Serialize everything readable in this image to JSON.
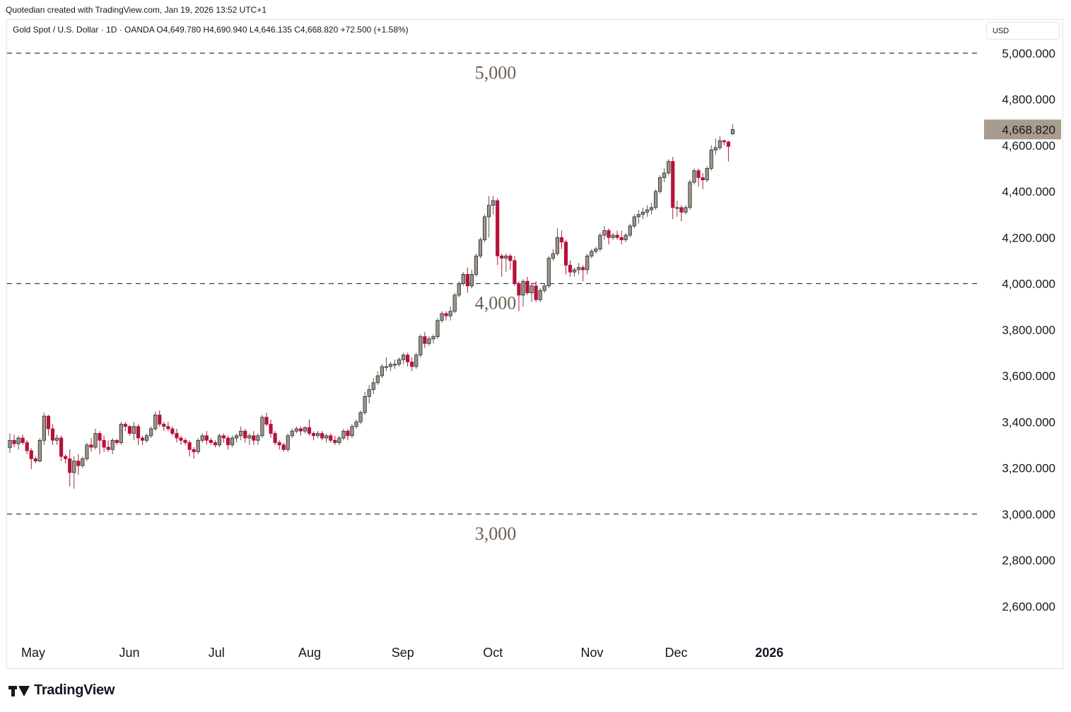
{
  "header": {
    "credit": "Quotedian created with TradingView.com, Jan 19, 2026 13:52 UTC+1"
  },
  "legend": {
    "text": "Gold Spot / U.S. Dollar · 1D · OANDA  O4,649.780  H4,690.940  L4,646.135  C4,668.820  +72.500 (+1.58%)"
  },
  "currency_button": "USD",
  "footer": {
    "brand": "TradingView",
    "logo_icon": "tradingview-logo-icon"
  },
  "colors": {
    "up": "#9e9488",
    "down": "#b5123a",
    "wick": "#555555",
    "level_line": "#3c3c3c",
    "level_label": "#6b6155",
    "last_price_bg": "#a89c8e"
  },
  "chart_data": {
    "type": "candlestick",
    "title": "",
    "xlabel": "",
    "ylabel": "",
    "ylim": [
      2455,
      5085
    ],
    "y_ticks": [
      "2,600.000",
      "2,800.000",
      "3,000.000",
      "3,200.000",
      "3,400.000",
      "3,600.000",
      "3,800.000",
      "4,000.000",
      "4,200.000",
      "4,400.000",
      "4,600.000",
      "4,800.000",
      "5,000.000"
    ],
    "y_tick_values": [
      2600,
      2800,
      3000,
      3200,
      3400,
      3600,
      3800,
      4000,
      4200,
      4400,
      4600,
      4800,
      5000
    ],
    "x_labels": [
      {
        "label": "May",
        "bold": false
      },
      {
        "label": "Jun",
        "bold": false
      },
      {
        "label": "Jul",
        "bold": false
      },
      {
        "label": "Aug",
        "bold": false
      },
      {
        "label": "Sep",
        "bold": false
      },
      {
        "label": "Oct",
        "bold": false
      },
      {
        "label": "Nov",
        "bold": false
      },
      {
        "label": "Dec",
        "bold": false
      },
      {
        "label": "2026",
        "bold": true
      }
    ],
    "x_label_dates": [
      "2025-05-01",
      "2025-06-02",
      "2025-07-01",
      "2025-08-01",
      "2025-09-01",
      "2025-10-01",
      "2025-11-03",
      "2025-12-01",
      "2026-01-01"
    ],
    "last_price": {
      "value": 4668.82,
      "label": "4,668.820"
    },
    "levels": [
      {
        "value": 5000,
        "label": "5,000"
      },
      {
        "value": 4000,
        "label": "4,000"
      },
      {
        "value": 3000,
        "label": "3,000"
      }
    ],
    "grid": false,
    "candles": [
      [
        3288,
        3350,
        3265,
        3320
      ],
      [
        3320,
        3345,
        3290,
        3305
      ],
      [
        3305,
        3340,
        3280,
        3330
      ],
      [
        3330,
        3345,
        3300,
        3310
      ],
      [
        3310,
        3320,
        3260,
        3275
      ],
      [
        3275,
        3285,
        3195,
        3240
      ],
      [
        3240,
        3250,
        3220,
        3230
      ],
      [
        3230,
        3330,
        3225,
        3320
      ],
      [
        3320,
        3440,
        3300,
        3425
      ],
      [
        3425,
        3430,
        3340,
        3370
      ],
      [
        3370,
        3390,
        3300,
        3320
      ],
      [
        3320,
        3345,
        3300,
        3330
      ],
      [
        3330,
        3340,
        3230,
        3250
      ],
      [
        3250,
        3260,
        3220,
        3240
      ],
      [
        3240,
        3280,
        3120,
        3180
      ],
      [
        3180,
        3250,
        3110,
        3230
      ],
      [
        3230,
        3260,
        3170,
        3210
      ],
      [
        3210,
        3250,
        3200,
        3240
      ],
      [
        3240,
        3310,
        3230,
        3300
      ],
      [
        3300,
        3330,
        3270,
        3290
      ],
      [
        3290,
        3370,
        3280,
        3350
      ],
      [
        3350,
        3360,
        3260,
        3320
      ],
      [
        3320,
        3340,
        3270,
        3290
      ],
      [
        3290,
        3320,
        3270,
        3280
      ],
      [
        3280,
        3330,
        3260,
        3320
      ],
      [
        3320,
        3325,
        3300,
        3310
      ],
      [
        3310,
        3400,
        3300,
        3390
      ],
      [
        3390,
        3400,
        3360,
        3380
      ],
      [
        3380,
        3385,
        3340,
        3350
      ],
      [
        3350,
        3400,
        3320,
        3380
      ],
      [
        3380,
        3390,
        3300,
        3330
      ],
      [
        3330,
        3340,
        3300,
        3320
      ],
      [
        3320,
        3350,
        3310,
        3340
      ],
      [
        3340,
        3380,
        3330,
        3370
      ],
      [
        3370,
        3445,
        3360,
        3430
      ],
      [
        3430,
        3450,
        3380,
        3390
      ],
      [
        3390,
        3400,
        3360,
        3380
      ],
      [
        3380,
        3400,
        3360,
        3370
      ],
      [
        3370,
        3380,
        3340,
        3350
      ],
      [
        3350,
        3370,
        3310,
        3330
      ],
      [
        3330,
        3340,
        3300,
        3320
      ],
      [
        3320,
        3330,
        3300,
        3310
      ],
      [
        3310,
        3320,
        3250,
        3280
      ],
      [
        3280,
        3290,
        3240,
        3270
      ],
      [
        3270,
        3330,
        3260,
        3320
      ],
      [
        3320,
        3350,
        3310,
        3340
      ],
      [
        3340,
        3360,
        3300,
        3320
      ],
      [
        3320,
        3330,
        3300,
        3310
      ],
      [
        3310,
        3320,
        3290,
        3300
      ],
      [
        3300,
        3350,
        3290,
        3340
      ],
      [
        3340,
        3350,
        3310,
        3330
      ],
      [
        3330,
        3340,
        3280,
        3300
      ],
      [
        3300,
        3340,
        3290,
        3330
      ],
      [
        3330,
        3350,
        3310,
        3340
      ],
      [
        3340,
        3380,
        3320,
        3360
      ],
      [
        3360,
        3370,
        3310,
        3330
      ],
      [
        3330,
        3350,
        3300,
        3340
      ],
      [
        3340,
        3360,
        3300,
        3320
      ],
      [
        3320,
        3350,
        3300,
        3340
      ],
      [
        3340,
        3430,
        3330,
        3420
      ],
      [
        3420,
        3440,
        3380,
        3390
      ],
      [
        3390,
        3410,
        3330,
        3350
      ],
      [
        3350,
        3360,
        3300,
        3310
      ],
      [
        3310,
        3320,
        3280,
        3300
      ],
      [
        3300,
        3310,
        3270,
        3280
      ],
      [
        3280,
        3350,
        3270,
        3340
      ],
      [
        3340,
        3370,
        3330,
        3360
      ],
      [
        3360,
        3380,
        3350,
        3370
      ],
      [
        3370,
        3380,
        3340,
        3360
      ],
      [
        3360,
        3380,
        3350,
        3375
      ],
      [
        3375,
        3410,
        3340,
        3350
      ],
      [
        3350,
        3360,
        3320,
        3340
      ],
      [
        3340,
        3360,
        3330,
        3350
      ],
      [
        3350,
        3360,
        3320,
        3330
      ],
      [
        3330,
        3350,
        3310,
        3340
      ],
      [
        3340,
        3350,
        3310,
        3320
      ],
      [
        3320,
        3340,
        3300,
        3310
      ],
      [
        3310,
        3340,
        3300,
        3330
      ],
      [
        3330,
        3370,
        3320,
        3360
      ],
      [
        3360,
        3370,
        3320,
        3340
      ],
      [
        3340,
        3390,
        3330,
        3380
      ],
      [
        3380,
        3410,
        3370,
        3400
      ],
      [
        3400,
        3450,
        3390,
        3440
      ],
      [
        3440,
        3530,
        3430,
        3510
      ],
      [
        3510,
        3560,
        3480,
        3540
      ],
      [
        3540,
        3590,
        3520,
        3570
      ],
      [
        3570,
        3620,
        3560,
        3600
      ],
      [
        3600,
        3650,
        3590,
        3640
      ],
      [
        3640,
        3680,
        3620,
        3640
      ],
      [
        3640,
        3660,
        3620,
        3650
      ],
      [
        3650,
        3670,
        3630,
        3650
      ],
      [
        3650,
        3680,
        3640,
        3670
      ],
      [
        3670,
        3700,
        3650,
        3690
      ],
      [
        3690,
        3700,
        3640,
        3660
      ],
      [
        3660,
        3680,
        3620,
        3640
      ],
      [
        3640,
        3700,
        3630,
        3690
      ],
      [
        3690,
        3780,
        3680,
        3770
      ],
      [
        3770,
        3790,
        3720,
        3740
      ],
      [
        3740,
        3770,
        3730,
        3760
      ],
      [
        3760,
        3780,
        3740,
        3770
      ],
      [
        3770,
        3850,
        3760,
        3840
      ],
      [
        3840,
        3880,
        3830,
        3870
      ],
      [
        3870,
        3880,
        3840,
        3860
      ],
      [
        3860,
        3900,
        3840,
        3880
      ],
      [
        3880,
        3960,
        3870,
        3950
      ],
      [
        3950,
        4010,
        3940,
        4000
      ],
      [
        4000,
        4050,
        3990,
        4040
      ],
      [
        4040,
        4070,
        3960,
        3990
      ],
      [
        3990,
        4060,
        3980,
        4040
      ],
      [
        4040,
        4130,
        4030,
        4120
      ],
      [
        4120,
        4200,
        4110,
        4190
      ],
      [
        4190,
        4300,
        4180,
        4290
      ],
      [
        4290,
        4380,
        4200,
        4340
      ],
      [
        4340,
        4380,
        4300,
        4360
      ],
      [
        4360,
        4370,
        4080,
        4120
      ],
      [
        4120,
        4130,
        4030,
        4110
      ],
      [
        4110,
        4130,
        4050,
        4120
      ],
      [
        4120,
        4130,
        4060,
        4100
      ],
      [
        4100,
        4120,
        3990,
        4000
      ],
      [
        4000,
        4010,
        3880,
        3950
      ],
      [
        3950,
        4020,
        3900,
        4010
      ],
      [
        4010,
        4030,
        3950,
        3960
      ],
      [
        3960,
        4000,
        3920,
        3990
      ],
      [
        3990,
        4010,
        3920,
        3930
      ],
      [
        3930,
        3980,
        3920,
        3970
      ],
      [
        3970,
        4000,
        3960,
        3990
      ],
      [
        3990,
        4120,
        3980,
        4110
      ],
      [
        4110,
        4150,
        4100,
        4130
      ],
      [
        4130,
        4240,
        4120,
        4200
      ],
      [
        4200,
        4230,
        4150,
        4180
      ],
      [
        4180,
        4190,
        4040,
        4080
      ],
      [
        4080,
        4100,
        4030,
        4050
      ],
      [
        4050,
        4070,
        4030,
        4060
      ],
      [
        4060,
        4090,
        4040,
        4070
      ],
      [
        4070,
        4080,
        4010,
        4060
      ],
      [
        4060,
        4130,
        4040,
        4120
      ],
      [
        4120,
        4150,
        4110,
        4140
      ],
      [
        4140,
        4160,
        4130,
        4150
      ],
      [
        4150,
        4220,
        4140,
        4210
      ],
      [
        4210,
        4250,
        4190,
        4230
      ],
      [
        4230,
        4240,
        4170,
        4200
      ],
      [
        4200,
        4220,
        4190,
        4210
      ],
      [
        4210,
        4230,
        4190,
        4200
      ],
      [
        4200,
        4230,
        4170,
        4190
      ],
      [
        4190,
        4220,
        4180,
        4210
      ],
      [
        4210,
        4260,
        4200,
        4250
      ],
      [
        4250,
        4300,
        4240,
        4290
      ],
      [
        4290,
        4320,
        4260,
        4300
      ],
      [
        4300,
        4330,
        4280,
        4310
      ],
      [
        4310,
        4340,
        4290,
        4320
      ],
      [
        4320,
        4350,
        4300,
        4330
      ],
      [
        4330,
        4410,
        4320,
        4400
      ],
      [
        4400,
        4470,
        4390,
        4460
      ],
      [
        4460,
        4500,
        4440,
        4480
      ],
      [
        4480,
        4540,
        4470,
        4530
      ],
      [
        4530,
        4550,
        4280,
        4330
      ],
      [
        4330,
        4360,
        4290,
        4330
      ],
      [
        4330,
        4340,
        4270,
        4310
      ],
      [
        4310,
        4340,
        4300,
        4330
      ],
      [
        4330,
        4450,
        4320,
        4440
      ],
      [
        4440,
        4500,
        4430,
        4490
      ],
      [
        4490,
        4500,
        4420,
        4460
      ],
      [
        4460,
        4480,
        4410,
        4450
      ],
      [
        4450,
        4510,
        4440,
        4500
      ],
      [
        4500,
        4600,
        4490,
        4580
      ],
      [
        4580,
        4630,
        4560,
        4590
      ],
      [
        4590,
        4640,
        4580,
        4620
      ],
      [
        4620,
        4625,
        4600,
        4615
      ],
      [
        4615,
        4620,
        4530,
        4595
      ],
      [
        4649.78,
        4690.94,
        4646.135,
        4668.82
      ]
    ]
  }
}
